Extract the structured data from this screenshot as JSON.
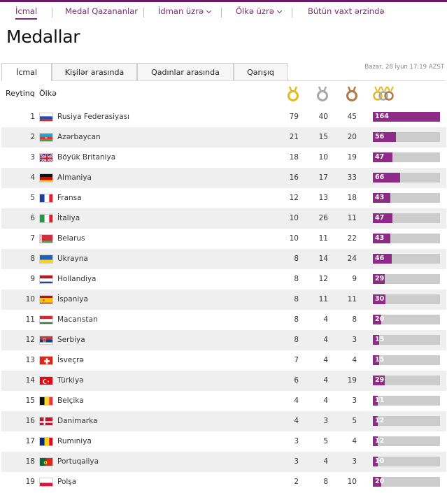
{
  "nav": {
    "items": [
      {
        "label": "İcmal",
        "active": true,
        "dropdown": false
      },
      {
        "label": "Medal Qazananlar",
        "active": false,
        "dropdown": false
      },
      {
        "label": "İdman üzrə",
        "active": false,
        "dropdown": true
      },
      {
        "label": "Ölkə üzrə",
        "active": false,
        "dropdown": true
      },
      {
        "label": "Bütün vaxt ərzində",
        "active": false,
        "dropdown": false
      }
    ]
  },
  "page_title": "Medallar",
  "tabs": [
    {
      "label": "İcmal",
      "active": true
    },
    {
      "label": "Kişilər arasında",
      "active": false
    },
    {
      "label": "Qadınlar arasında",
      "active": false
    },
    {
      "label": "Qarışıq",
      "active": false
    }
  ],
  "timestamp": "Bazar, 28 İyun 17:19 AZST",
  "table": {
    "headers": {
      "rank": "Reytinq",
      "country": "Ölkə"
    },
    "medal_icons": [
      "gold-medal-icon",
      "silver-medal-icon",
      "bronze-medal-icon",
      "total-medals-icon"
    ],
    "max_total": 164,
    "rows": [
      {
        "rank": "1",
        "country": "Rusiya Federasiyası",
        "flag": "russia-flag-icon",
        "gold": "79",
        "silver": "40",
        "bronze": "45",
        "total": "164"
      },
      {
        "rank": "2",
        "country": "Azərbaycan",
        "flag": "azerbaijan-flag-icon",
        "gold": "21",
        "silver": "15",
        "bronze": "20",
        "total": "56"
      },
      {
        "rank": "3",
        "country": "Böyük Britaniya",
        "flag": "great-britain-flag-icon",
        "gold": "18",
        "silver": "10",
        "bronze": "19",
        "total": "47"
      },
      {
        "rank": "4",
        "country": "Almaniya",
        "flag": "germany-flag-icon",
        "gold": "16",
        "silver": "17",
        "bronze": "33",
        "total": "66"
      },
      {
        "rank": "5",
        "country": "Fransa",
        "flag": "france-flag-icon",
        "gold": "12",
        "silver": "13",
        "bronze": "18",
        "total": "43"
      },
      {
        "rank": "6",
        "country": "İtaliya",
        "flag": "italy-flag-icon",
        "gold": "10",
        "silver": "26",
        "bronze": "11",
        "total": "47"
      },
      {
        "rank": "7",
        "country": "Belarus",
        "flag": "belarus-flag-icon",
        "gold": "10",
        "silver": "11",
        "bronze": "22",
        "total": "43"
      },
      {
        "rank": "8",
        "country": "Ukrayna",
        "flag": "ukraine-flag-icon",
        "gold": "8",
        "silver": "14",
        "bronze": "24",
        "total": "46"
      },
      {
        "rank": "9",
        "country": "Hollandiya",
        "flag": "netherlands-flag-icon",
        "gold": "8",
        "silver": "12",
        "bronze": "9",
        "total": "29"
      },
      {
        "rank": "10",
        "country": "İspaniya",
        "flag": "spain-flag-icon",
        "gold": "8",
        "silver": "11",
        "bronze": "11",
        "total": "30"
      },
      {
        "rank": "11",
        "country": "Macarıstan",
        "flag": "hungary-flag-icon",
        "gold": "8",
        "silver": "4",
        "bronze": "8",
        "total": "20"
      },
      {
        "rank": "12",
        "country": "Serbiya",
        "flag": "serbia-flag-icon",
        "gold": "8",
        "silver": "4",
        "bronze": "3",
        "total": "15"
      },
      {
        "rank": "13",
        "country": "İsveçrə",
        "flag": "switzerland-flag-icon",
        "gold": "7",
        "silver": "4",
        "bronze": "4",
        "total": "15"
      },
      {
        "rank": "14",
        "country": "Türkiyə",
        "flag": "turkey-flag-icon",
        "gold": "6",
        "silver": "4",
        "bronze": "19",
        "total": "29"
      },
      {
        "rank": "15",
        "country": "Belçika",
        "flag": "belgium-flag-icon",
        "gold": "4",
        "silver": "4",
        "bronze": "3",
        "total": "11"
      },
      {
        "rank": "16",
        "country": "Danimarka",
        "flag": "denmark-flag-icon",
        "gold": "4",
        "silver": "3",
        "bronze": "5",
        "total": "12"
      },
      {
        "rank": "17",
        "country": "Rumıniya",
        "flag": "romania-flag-icon",
        "gold": "3",
        "silver": "5",
        "bronze": "4",
        "total": "12"
      },
      {
        "rank": "18",
        "country": "Portuqaliya",
        "flag": "portugal-flag-icon",
        "gold": "3",
        "silver": "4",
        "bronze": "3",
        "total": "10"
      },
      {
        "rank": "19",
        "country": "Polşa",
        "flag": "poland-flag-icon",
        "gold": "2",
        "silver": "8",
        "bronze": "10",
        "total": "20"
      }
    ]
  },
  "colors": {
    "accent": "#7a2a73",
    "bar_fill": "#8e2b87",
    "bar_track": "#cccccc",
    "row_alt": "#efefef",
    "gold": "#e6b91e",
    "silver": "#a8a8a8",
    "bronze": "#b07a45"
  }
}
